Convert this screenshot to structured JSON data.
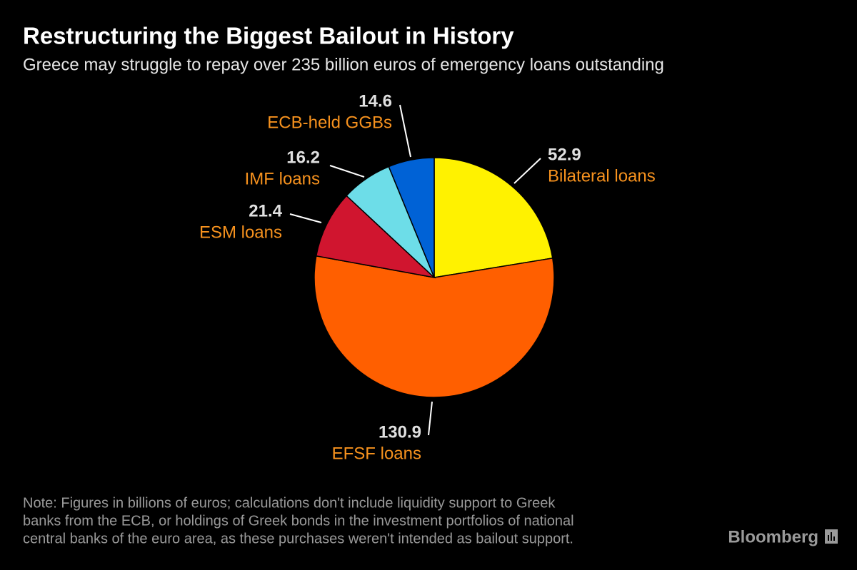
{
  "chart_data": {
    "type": "pie",
    "title": "Restructuring the Biggest Bailout in History",
    "subtitle": "Greece may struggle to repay over 235 billion euros of emergency loans outstanding",
    "categories": [
      "Bilateral loans",
      "EFSF loans",
      "ESM loans",
      "IMF loans",
      "ECB-held GGBs"
    ],
    "values": [
      52.9,
      130.9,
      21.4,
      16.2,
      14.6
    ],
    "colors": [
      "#fff200",
      "#ff5f00",
      "#d0152f",
      "#6ddde8",
      "#0062d6"
    ],
    "note": [
      "Note: Figures in billions of euros; calculations don't include liquidity support to Greek",
      "banks from the ECB, or holdings of Greek bonds in the investment portfolios of national",
      "central banks of the euro area, as these purchases weren't intended as bailout support."
    ],
    "source": "Bloomberg"
  }
}
